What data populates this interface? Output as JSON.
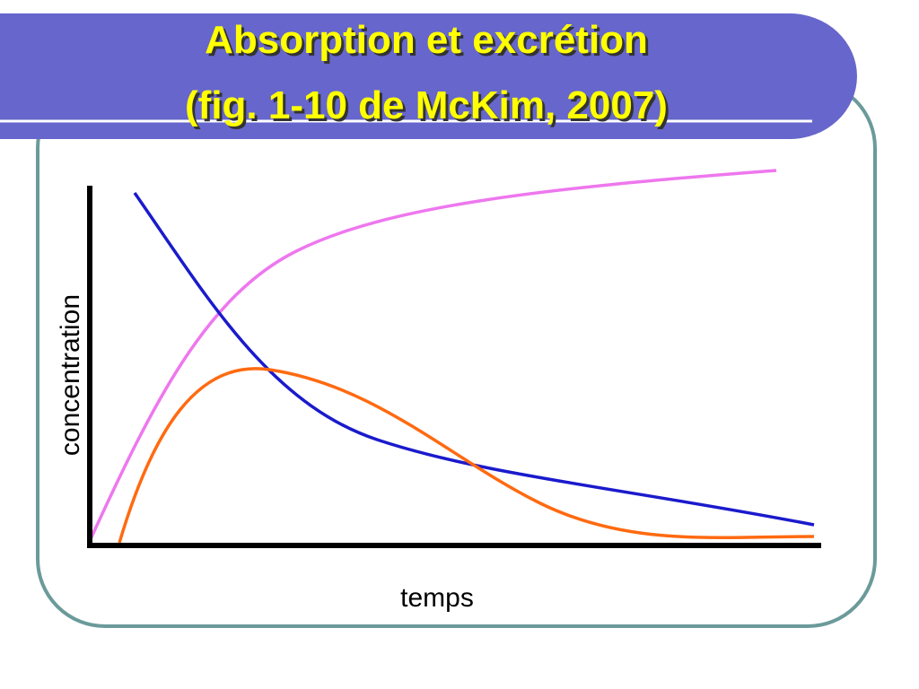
{
  "slide": {
    "title": [
      "Absorption et excrétion",
      "(fig. 1-10 de McKim, 2007)"
    ],
    "y_label": "concentration",
    "x_label": "temps"
  }
}
